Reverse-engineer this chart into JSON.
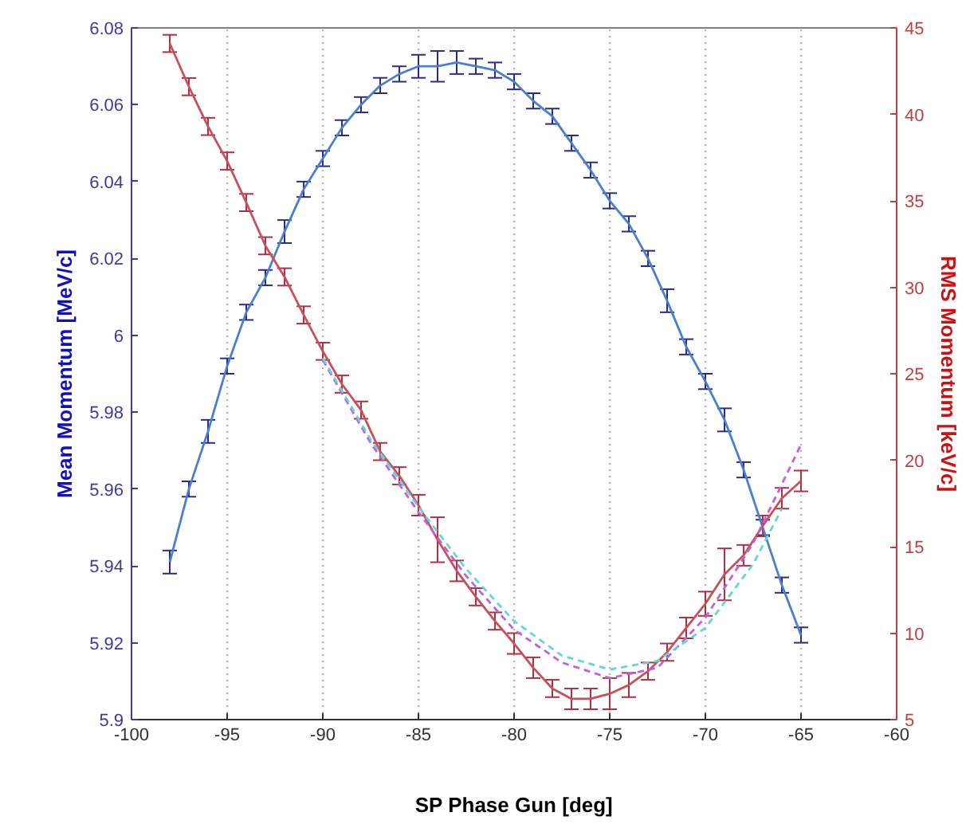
{
  "chart_data": {
    "type": "line",
    "xlabel": "SP Phase Gun [deg]",
    "ylabel": "Mean Momentum [MeV/c]",
    "y2label": "RMS Momentum [keV/c]",
    "xlim": [
      -100,
      -60
    ],
    "xticks": [
      -100,
      -95,
      -90,
      -85,
      -80,
      -75,
      -70,
      -65,
      -60
    ],
    "ylim": [
      5.9,
      6.08
    ],
    "yticks": [
      5.9,
      5.92,
      5.94,
      5.96,
      5.98,
      6,
      6.02,
      6.04,
      6.06,
      6.08
    ],
    "y2lim": [
      5,
      45
    ],
    "y2ticks": [
      5,
      10,
      15,
      20,
      25,
      30,
      35,
      40,
      45
    ],
    "grid": "x",
    "series": [
      {
        "color": "#4a7fd0",
        "axis": "y",
        "x": [
          -98,
          -97,
          -96,
          -95,
          -94,
          -93,
          -92,
          -91,
          -90,
          -89,
          -88,
          -87,
          -86,
          -85,
          -84,
          -83,
          -82,
          -81,
          -80,
          -79,
          -78,
          -77,
          -76,
          -75,
          -74,
          -73,
          -72,
          -71,
          -70,
          -69,
          -68,
          -67,
          -66,
          -65
        ],
        "values": [
          5.941,
          5.96,
          5.975,
          5.992,
          6.006,
          6.015,
          6.027,
          6.038,
          6.046,
          6.054,
          6.06,
          6.065,
          6.068,
          6.07,
          6.07,
          6.071,
          6.07,
          6.069,
          6.066,
          6.061,
          6.057,
          6.05,
          6.043,
          6.035,
          6.029,
          6.02,
          6.009,
          5.997,
          5.988,
          5.978,
          5.965,
          5.95,
          5.935,
          5.922
        ],
        "errors": [
          0.003,
          0.002,
          0.003,
          0.002,
          0.002,
          0.002,
          0.003,
          0.002,
          0.002,
          0.002,
          0.002,
          0.002,
          0.002,
          0.003,
          0.004,
          0.003,
          0.002,
          0.002,
          0.002,
          0.002,
          0.002,
          0.002,
          0.002,
          0.002,
          0.002,
          0.002,
          0.003,
          0.002,
          0.002,
          0.003,
          0.002,
          0.002,
          0.002,
          0.002
        ]
      },
      {
        "color": "#c8505a",
        "axis": "y2",
        "x": [
          -98,
          -97,
          -96,
          -95,
          -94,
          -93,
          -92,
          -91,
          -90,
          -89,
          -88,
          -87,
          -86,
          -85,
          -84,
          -83,
          -82,
          -81,
          -80,
          -79,
          -78,
          -77,
          -76,
          -75,
          -74,
          -73,
          -72,
          -71,
          -70,
          -69,
          -68,
          -67,
          -66,
          -65
        ],
        "values": [
          44.1,
          41.6,
          39.3,
          37.3,
          34.9,
          32.4,
          30.6,
          28.4,
          26.3,
          24.4,
          22.9,
          20.5,
          19.1,
          17.4,
          15.4,
          13.6,
          12.1,
          10.7,
          9.4,
          8.0,
          6.8,
          6.2,
          6.2,
          6.5,
          7.0,
          7.8,
          8.9,
          10.3,
          11.7,
          13.4,
          14.5,
          16.2,
          17.8,
          18.8
        ],
        "errors": [
          0.5,
          0.5,
          0.5,
          0.5,
          0.5,
          0.5,
          0.5,
          0.5,
          0.5,
          0.5,
          0.5,
          0.5,
          0.5,
          0.6,
          1.3,
          0.6,
          0.5,
          0.5,
          0.6,
          0.6,
          0.5,
          0.6,
          0.6,
          0.9,
          0.7,
          0.5,
          0.5,
          0.6,
          0.7,
          1.5,
          0.6,
          0.6,
          0.6,
          0.6
        ]
      },
      {
        "color": "#c060e0",
        "axis": "y2",
        "line_style": "dashed",
        "x": [
          -90,
          -87.5,
          -85,
          -82.5,
          -80,
          -77.5,
          -75,
          -72.5,
          -70,
          -67.5,
          -65
        ],
        "values": [
          25.8,
          21.0,
          17.0,
          13.3,
          10.2,
          8.3,
          7.4,
          8.0,
          10.9,
          15.2,
          20.9
        ]
      },
      {
        "color": "#60d8d8",
        "axis": "y2",
        "line_style": "dashed",
        "x": [
          -90,
          -87.5,
          -85,
          -82.5,
          -80,
          -77.5,
          -75,
          -72.5,
          -70,
          -67.5,
          -66
        ],
        "values": [
          25.9,
          21.2,
          17.3,
          13.7,
          10.7,
          8.7,
          7.9,
          8.4,
          10.3,
          14.0,
          17.2
        ]
      }
    ]
  }
}
